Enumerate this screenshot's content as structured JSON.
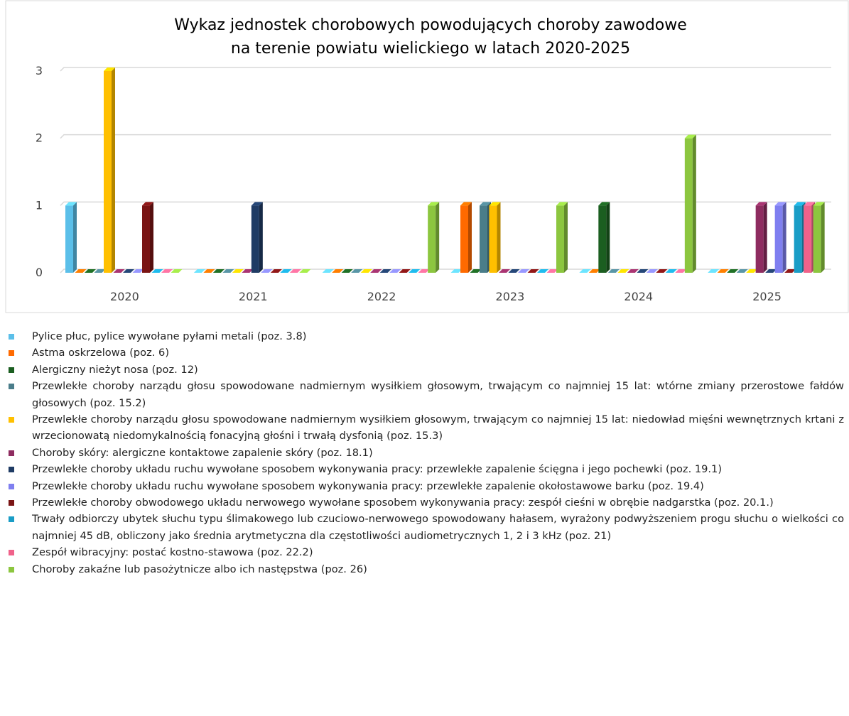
{
  "chart_data": {
    "type": "bar3d",
    "title": "Wykaz jednostek chorobowych powodujących choroby zawodowe na terenie powiatu wielickiego w latach 2020-2025",
    "categories": [
      "2020",
      "2021",
      "2022",
      "2023",
      "2024",
      "2025"
    ],
    "ylim": [
      0,
      3
    ],
    "yticks": [
      0,
      1,
      2,
      3
    ],
    "grid": true,
    "legend": "bottom",
    "series": [
      {
        "name": "Pylice płuc, pylice wywołane pyłami metali (poz. 3.8)",
        "color": "#5bbfe9",
        "values": [
          1,
          0,
          0,
          0,
          0,
          0
        ]
      },
      {
        "name": "Astma oskrzelowa (poz. 6)",
        "color": "#ff6a00",
        "values": [
          0,
          0,
          0,
          1,
          0,
          0
        ]
      },
      {
        "name": "Alergiczny nieżyt nosa (poz. 12)",
        "color": "#1b5e20",
        "values": [
          0,
          0,
          0,
          0,
          1,
          0
        ]
      },
      {
        "name": "Przewlekłe choroby narządu głosu spowodowane nadmiernym wysiłkiem głosowym, trwającym co najmniej 15 lat: wtórne zmiany przerostowe fałdów głosowych (poz. 15.2)",
        "color": "#4a7d8a",
        "values": [
          0,
          0,
          0,
          1,
          0,
          0
        ]
      },
      {
        "name": "Przewlekłe choroby narządu głosu spowodowane nadmiernym wysiłkiem głosowym, trwającym co najmniej 15 lat: niedowład mięśni wewnętrznych krtani z wrzecionowatą niedomykalnością fonacyjną głośni i trwałą dysfonią (poz. 15.3)",
        "color": "#ffc000",
        "values": [
          3,
          0,
          0,
          1,
          0,
          0
        ]
      },
      {
        "name": "Choroby skóry: alergiczne kontaktowe zapalenie skóry (poz. 18.1)",
        "color": "#8e2c60",
        "values": [
          0,
          0,
          0,
          0,
          0,
          1
        ]
      },
      {
        "name": "Przewlekłe choroby układu ruchu wywołane sposobem wykonywania pracy: przewlekłe zapalenie ścięgna i jego pochewki (poz. 19.1)",
        "color": "#1f3b64",
        "values": [
          0,
          1,
          0,
          0,
          0,
          0
        ]
      },
      {
        "name": "Przewlekłe choroby układu ruchu wywołane sposobem wykonywania pracy: przewlekłe zapalenie okołostawowe barku (poz. 19.4)",
        "color": "#7f7ff0",
        "values": [
          0,
          0,
          0,
          0,
          0,
          1
        ]
      },
      {
        "name": "Przewlekłe choroby obwodowego układu nerwowego wywołane sposobem wykonywania pracy: zespół cieśni w obrębie nadgarstka (poz. 20.1.)",
        "color": "#7a1414",
        "values": [
          1,
          0,
          0,
          0,
          0,
          0
        ]
      },
      {
        "name": "Trwały odbiorczy ubytek słuchu typu ślimakowego lub czuciowo-nerwowego spowodowany hałasem, wyrażony podwyższeniem progu słuchu o wielkości co najmniej 45 dB, obliczony jako średnia arytmetyczna dla częstotliwości audiometrycznych 1, 2 i 3 kHz (poz. 21)",
        "color": "#1a9dc6",
        "values": [
          0,
          0,
          0,
          0,
          0,
          1
        ]
      },
      {
        "name": "Zespół wibracyjny: postać kostno-stawowa (poz. 22.2)",
        "color": "#f0628a",
        "values": [
          0,
          0,
          0,
          0,
          0,
          1
        ]
      },
      {
        "name": "Choroby zakaźne lub pasożytnicze albo ich następstwa (poz. 26)",
        "color": "#8cc63f",
        "values": [
          0,
          0,
          1,
          1,
          2,
          1
        ]
      }
    ]
  }
}
